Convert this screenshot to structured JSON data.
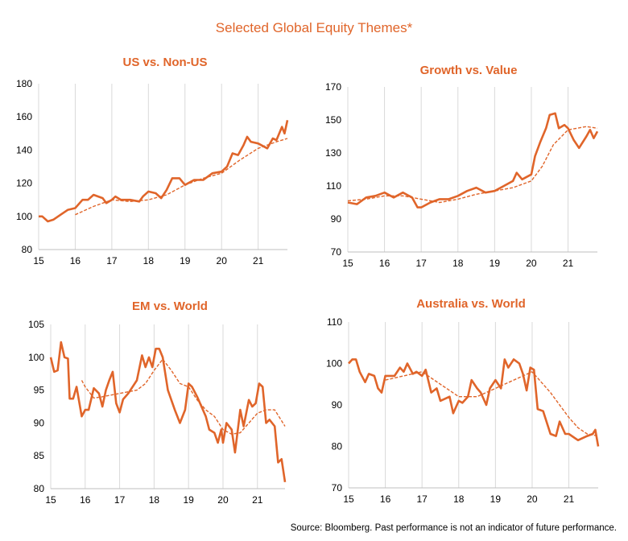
{
  "title": "Selected Global Equity Themes*",
  "source": "Source: Bloomberg.  Past performance is not an indicator of future performance.",
  "chart_data": [
    {
      "type": "line",
      "title": "US vs. Non-US",
      "xlim": [
        15,
        21.8
      ],
      "xticks": [
        15,
        16,
        17,
        18,
        19,
        20,
        21
      ],
      "ylim": [
        80,
        180
      ],
      "yticks": [
        80,
        100,
        120,
        140,
        160,
        180
      ],
      "grid": true,
      "series": [
        {
          "color": "#e0652a",
          "dashed": false,
          "x": [
            15,
            15.1,
            15.25,
            15.4,
            15.6,
            15.8,
            16,
            16.2,
            16.35,
            16.5,
            16.75,
            16.85,
            17,
            17.1,
            17.25,
            17.5,
            17.75,
            17.85,
            18,
            18.2,
            18.35,
            18.5,
            18.65,
            18.85,
            19,
            19.25,
            19.5,
            19.75,
            20,
            20.15,
            20.3,
            20.45,
            20.6,
            20.7,
            20.8,
            21,
            21.25,
            21.4,
            21.5,
            21.65,
            21.72,
            21.8
          ],
          "values": [
            100,
            100,
            97,
            98,
            101,
            104,
            105,
            110,
            110,
            113,
            111,
            108,
            110,
            112,
            110,
            110,
            109,
            112,
            115,
            114,
            111,
            116,
            123,
            123,
            119,
            122,
            122,
            126,
            127,
            130,
            138,
            137,
            143,
            148,
            145,
            144,
            141,
            147,
            146,
            154,
            150,
            158
          ]
        },
        {
          "color": "#e0652a",
          "dashed": true,
          "x": [
            16,
            16.5,
            17,
            17.5,
            18,
            18.5,
            19,
            19.5,
            20,
            20.5,
            21,
            21.5,
            21.8
          ],
          "values": [
            101,
            106,
            110,
            109,
            110,
            113,
            119,
            123,
            126,
            134,
            141,
            145,
            147
          ]
        }
      ]
    },
    {
      "type": "line",
      "title": "Growth vs. Value",
      "xlim": [
        15,
        21.8
      ],
      "xticks": [
        15,
        16,
        17,
        18,
        19,
        20,
        21
      ],
      "ylim": [
        70,
        170
      ],
      "yticks": [
        70,
        90,
        110,
        130,
        150,
        170
      ],
      "grid": true,
      "series": [
        {
          "color": "#e0652a",
          "dashed": false,
          "x": [
            15,
            15.25,
            15.5,
            15.75,
            16,
            16.25,
            16.5,
            16.75,
            16.9,
            17,
            17.25,
            17.5,
            17.75,
            18,
            18.25,
            18.5,
            18.75,
            19,
            19.25,
            19.5,
            19.6,
            19.75,
            20,
            20.1,
            20.25,
            20.4,
            20.5,
            20.65,
            20.75,
            20.9,
            21,
            21.15,
            21.3,
            21.5,
            21.6,
            21.7,
            21.8
          ],
          "values": [
            100,
            99,
            103,
            104,
            106,
            103,
            106,
            103,
            97,
            97,
            100,
            102,
            102,
            104,
            107,
            109,
            106,
            107,
            110,
            113,
            118,
            114,
            117,
            128,
            137,
            145,
            153,
            154,
            145,
            147,
            145,
            138,
            133,
            140,
            144,
            139,
            143
          ]
        },
        {
          "color": "#e0652a",
          "dashed": true,
          "x": [
            15,
            15.5,
            16,
            16.5,
            17,
            17.5,
            18,
            18.5,
            19,
            19.5,
            20,
            20.3,
            20.6,
            21,
            21.5,
            21.8
          ],
          "values": [
            101,
            102,
            104,
            104,
            102,
            100,
            102,
            105,
            107,
            109,
            113,
            122,
            135,
            144,
            146,
            145
          ]
        }
      ]
    },
    {
      "type": "line",
      "title": "EM vs. World",
      "xlim": [
        15,
        21.8
      ],
      "xticks": [
        15,
        16,
        17,
        18,
        19,
        20,
        21
      ],
      "ylim": [
        80,
        105
      ],
      "yticks": [
        80,
        85,
        90,
        95,
        100,
        105
      ],
      "grid": true,
      "series": [
        {
          "color": "#e0652a",
          "dashed": false,
          "x": [
            15,
            15.1,
            15.2,
            15.3,
            15.4,
            15.5,
            15.55,
            15.65,
            15.75,
            15.9,
            16,
            16.1,
            16.25,
            16.4,
            16.5,
            16.6,
            16.7,
            16.8,
            16.9,
            17,
            17.1,
            17.25,
            17.5,
            17.65,
            17.75,
            17.85,
            17.95,
            18.05,
            18.15,
            18.25,
            18.4,
            18.6,
            18.75,
            18.9,
            19,
            19.1,
            19.25,
            19.5,
            19.6,
            19.75,
            19.85,
            19.95,
            20,
            20.1,
            20.25,
            20.35,
            20.5,
            20.6,
            20.75,
            20.85,
            20.95,
            21.05,
            21.15,
            21.25,
            21.35,
            21.5,
            21.6,
            21.7,
            21.8
          ],
          "values": [
            100,
            97.8,
            98,
            102.3,
            100,
            99.8,
            93.7,
            93.7,
            95.5,
            91,
            92,
            92,
            95.3,
            94.5,
            92.5,
            95,
            96.5,
            97.8,
            93,
            91.6,
            93.6,
            94.5,
            96.5,
            100.3,
            98.5,
            100,
            98.5,
            101.3,
            101.3,
            100,
            95,
            92,
            90,
            92,
            96,
            95.5,
            94,
            91,
            89,
            88.5,
            87,
            89,
            87,
            90,
            89,
            85.5,
            92,
            89.5,
            93.5,
            92.5,
            93,
            96,
            95.5,
            90,
            90.5,
            89.5,
            84,
            84.5,
            81
          ]
        },
        {
          "color": "#e0652a",
          "dashed": true,
          "x": [
            15.9,
            16,
            16.25,
            16.5,
            17,
            17.5,
            17.75,
            18,
            18.25,
            18.5,
            18.75,
            19,
            19.25,
            19.5,
            19.75,
            20,
            20.25,
            20.5,
            20.75,
            21,
            21.25,
            21.5,
            21.8
          ],
          "values": [
            96.5,
            95.5,
            93.8,
            94,
            94.5,
            95,
            96,
            98,
            99.7,
            98,
            96,
            95.5,
            93.5,
            92,
            91,
            89,
            88.3,
            88.5,
            90,
            91.5,
            92,
            92,
            89.5
          ]
        }
      ]
    },
    {
      "type": "line",
      "title": "Australia vs. World",
      "xlim": [
        15,
        21.8
      ],
      "xticks": [
        15,
        16,
        17,
        18,
        19,
        20,
        21
      ],
      "ylim": [
        70,
        110
      ],
      "yticks": [
        70,
        80,
        90,
        100,
        110
      ],
      "grid": true,
      "series": [
        {
          "color": "#e0652a",
          "dashed": false,
          "x": [
            15,
            15.1,
            15.2,
            15.3,
            15.45,
            15.55,
            15.7,
            15.8,
            15.9,
            16,
            16.25,
            16.4,
            16.5,
            16.6,
            16.75,
            16.85,
            17,
            17.1,
            17.25,
            17.4,
            17.5,
            17.75,
            17.85,
            18,
            18.1,
            18.25,
            18.35,
            18.5,
            18.6,
            18.75,
            18.85,
            19,
            19.15,
            19.25,
            19.35,
            19.5,
            19.65,
            19.75,
            19.85,
            19.95,
            20.05,
            20.15,
            20.3,
            20.5,
            20.65,
            20.75,
            20.9,
            21,
            21.25,
            21.5,
            21.65,
            21.72,
            21.8
          ],
          "values": [
            100,
            101,
            101,
            98,
            95.5,
            97.5,
            97,
            94,
            93,
            97,
            97,
            99,
            98,
            100,
            97.5,
            98,
            97,
            98.5,
            93,
            94,
            91,
            92,
            88,
            91,
            90.5,
            92,
            96,
            94,
            93,
            90,
            94,
            96,
            94,
            101,
            99,
            101,
            100,
            97.5,
            93.5,
            99,
            98.5,
            89,
            88.5,
            83,
            82.5,
            86,
            83,
            83,
            81.5,
            82.5,
            83,
            84,
            80
          ]
        },
        {
          "color": "#e0652a",
          "dashed": true,
          "x": [
            16,
            16.5,
            17,
            17.5,
            18,
            18.5,
            19,
            19.5,
            20,
            20.5,
            21,
            21.25,
            21.5,
            21.8
          ],
          "values": [
            96,
            97,
            98,
            95,
            92,
            92,
            94,
            96,
            98,
            93,
            87,
            84.5,
            83,
            82.5
          ]
        }
      ]
    }
  ]
}
